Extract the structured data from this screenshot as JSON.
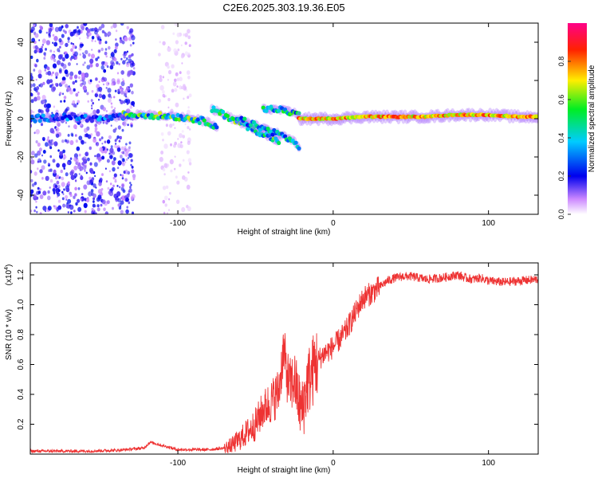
{
  "title": "C2E6.2025.303.19.36.E05",
  "chart_data": [
    {
      "type": "heatmap",
      "xlabel": "Height of straight line (km)",
      "ylabel": "Frequency (Hz)",
      "xlim": [
        -195,
        132
      ],
      "ylim": [
        -50,
        50
      ],
      "xticks": [
        -100,
        0,
        100
      ],
      "yticks": [
        -40,
        -20,
        0,
        20,
        40
      ],
      "colorbar": {
        "label": "Normalized spectral amplitude",
        "range": [
          0,
          1
        ],
        "ticks": [
          "0.0",
          "0.2",
          "0.4",
          "0.6",
          "0.8"
        ]
      },
      "series": [
        {
          "name": "noise scatter",
          "x_range": [
            -195,
            -128
          ],
          "y_range": [
            -50,
            50
          ],
          "amplitude": 0.1
        },
        {
          "name": "sparse scatter",
          "x_range": [
            -112,
            -92
          ],
          "y_range": [
            -50,
            50
          ],
          "amplitude": 0.03
        },
        {
          "name": "low-altitude carrier",
          "x": [
            -195,
            -170,
            -150,
            -130
          ],
          "y": [
            0,
            1,
            0,
            1
          ],
          "amplitude": 0.25
        },
        {
          "name": "carrier ridge A",
          "x": [
            -135,
            -120,
            -100,
            -90,
            -80,
            -75
          ],
          "y": [
            2,
            2,
            1,
            0,
            -2,
            -4
          ],
          "amplitude": 0.45
        },
        {
          "name": "carrier ridge B",
          "x": [
            -78,
            -70,
            -60,
            -50,
            -45,
            -40,
            -35
          ],
          "y": [
            5,
            2,
            -2,
            -6,
            -8,
            -10,
            -12
          ],
          "amplitude": 0.45
        },
        {
          "name": "carrier ridge C",
          "x": [
            -62,
            -52,
            -42,
            -35,
            -30,
            -25,
            -22
          ],
          "y": [
            0,
            -3,
            -6,
            -8,
            -10,
            -12,
            -16
          ],
          "amplitude": 0.35
        },
        {
          "name": "upper carrier",
          "x": [
            -45,
            -38,
            -30,
            -25,
            -22
          ],
          "y": [
            5,
            5,
            4,
            3,
            2
          ],
          "amplitude": 0.4
        },
        {
          "name": "carrier band",
          "x": [
            -22,
            0,
            20,
            40,
            60,
            80,
            100,
            120,
            132
          ],
          "y": [
            0,
            0,
            1,
            1,
            1,
            2,
            2,
            1,
            1
          ],
          "amplitude": 0.85
        }
      ]
    },
    {
      "type": "line",
      "xlabel": "Height of straight line (km)",
      "ylabel": "SNR (10 * v/v)",
      "y_scale_label": "(x10",
      "y_scale_exponent": "4",
      "xlim": [
        -195,
        132
      ],
      "ylim": [
        0,
        1.28
      ],
      "xticks": [
        -100,
        0,
        100
      ],
      "yticks": [
        "0.2",
        "0.4",
        "0.6",
        "0.8",
        "1.0",
        "1.2"
      ],
      "color": "#ee3333",
      "series": [
        {
          "name": "SNR",
          "x": [
            -195,
            -160,
            -140,
            -122,
            -118,
            -100,
            -80,
            -70,
            -65,
            -60,
            -55,
            -50,
            -45,
            -40,
            -35,
            -32,
            -30,
            -28,
            -25,
            -22,
            -20,
            -18,
            -16,
            -14,
            -12,
            -10,
            -8,
            -5,
            -2,
            0,
            2,
            5,
            8,
            10,
            12,
            14,
            16,
            18,
            20,
            25,
            30,
            35,
            40,
            45,
            50,
            60,
            70,
            80,
            85,
            90,
            95,
            100,
            110,
            120,
            132
          ],
          "y": [
            0.02,
            0.02,
            0.025,
            0.04,
            0.08,
            0.03,
            0.03,
            0.04,
            0.06,
            0.1,
            0.15,
            0.2,
            0.3,
            0.35,
            0.42,
            0.7,
            0.55,
            0.45,
            0.5,
            0.35,
            0.28,
            0.4,
            0.5,
            0.52,
            0.6,
            0.62,
            0.65,
            0.68,
            0.7,
            0.72,
            0.74,
            0.78,
            0.82,
            0.86,
            0.9,
            0.94,
            0.98,
            1.02,
            1.05,
            1.08,
            1.12,
            1.16,
            1.18,
            1.19,
            1.19,
            1.17,
            1.18,
            1.2,
            1.18,
            1.17,
            1.18,
            1.16,
            1.15,
            1.16,
            1.17
          ]
        }
      ]
    }
  ]
}
